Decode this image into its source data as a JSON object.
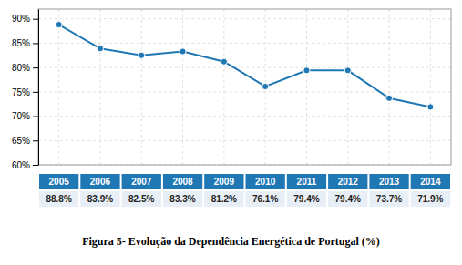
{
  "chart_data": {
    "type": "line",
    "title": "Figura 5- Evolução da Dependência Energética de Portugal (%)",
    "categories": [
      "2005",
      "2006",
      "2007",
      "2008",
      "2009",
      "2010",
      "2011",
      "2012",
      "2013",
      "2014"
    ],
    "values": [
      88.8,
      83.9,
      82.5,
      83.3,
      81.2,
      76.1,
      79.4,
      79.4,
      73.7,
      71.9
    ],
    "value_labels": [
      "88.8%",
      "83.9%",
      "82.5%",
      "83.3%",
      "81.2%",
      "76.1%",
      "79.4%",
      "79.4%",
      "73.7%",
      "71.9%"
    ],
    "ylim": [
      60,
      92
    ],
    "yticks": [
      {
        "value": 60,
        "label": "60%"
      },
      {
        "value": 65,
        "label": "65%"
      },
      {
        "value": 70,
        "label": "70%"
      },
      {
        "value": 75,
        "label": "75%"
      },
      {
        "value": 80,
        "label": "80%"
      },
      {
        "value": 85,
        "label": "85%"
      },
      {
        "value": 90,
        "label": "90%"
      }
    ],
    "grid": true,
    "marker": "circle",
    "tick_labels": "y"
  }
}
